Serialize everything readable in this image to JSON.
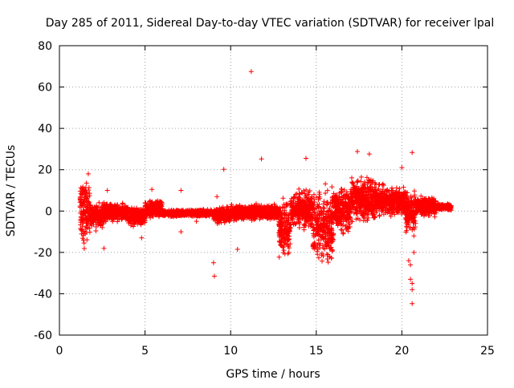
{
  "chart_data": {
    "type": "scatter",
    "title": "Day 285 of 2011, Sidereal Day-to-day VTEC variation (SDTVAR) for receiver lpal",
    "xlabel": "GPS time / hours",
    "ylabel": "SDTVAR / TECUs",
    "xlim": [
      0,
      25
    ],
    "ylim": [
      -60,
      80
    ],
    "xticks": [
      0,
      5,
      10,
      15,
      20,
      25
    ],
    "yticks": [
      -60,
      -40,
      -20,
      0,
      20,
      40,
      60,
      80
    ],
    "grid": true,
    "marker": "+",
    "series": [
      {
        "name": "SDTVAR",
        "color": "#ff0000",
        "bands": [
          {
            "x0": 1.2,
            "x1": 1.8,
            "lo": -20,
            "hi": 21
          },
          {
            "x0": 1.8,
            "x1": 2.6,
            "lo": -10,
            "hi": 6
          },
          {
            "x0": 2.6,
            "x1": 4.0,
            "lo": -6,
            "hi": 5
          },
          {
            "x0": 4.0,
            "x1": 5.0,
            "lo": -8,
            "hi": 3
          },
          {
            "x0": 5.0,
            "x1": 6.0,
            "lo": -4,
            "hi": 6
          },
          {
            "x0": 6.0,
            "x1": 9.0,
            "lo": -3,
            "hi": 1
          },
          {
            "x0": 9.0,
            "x1": 10.0,
            "lo": -7,
            "hi": 3
          },
          {
            "x0": 10.0,
            "x1": 12.8,
            "lo": -5,
            "hi": 4
          },
          {
            "x0": 12.8,
            "x1": 13.5,
            "lo": -26,
            "hi": 8
          },
          {
            "x0": 13.5,
            "x1": 14.8,
            "lo": -10,
            "hi": 12
          },
          {
            "x0": 14.8,
            "x1": 16.0,
            "lo": -30,
            "hi": 15
          },
          {
            "x0": 16.0,
            "x1": 17.0,
            "lo": -14,
            "hi": 16
          },
          {
            "x0": 17.0,
            "x1": 18.5,
            "lo": -8,
            "hi": 19
          },
          {
            "x0": 18.5,
            "x1": 20.2,
            "lo": -4,
            "hi": 14
          },
          {
            "x0": 20.2,
            "x1": 20.8,
            "lo": -12,
            "hi": 12
          },
          {
            "x0": 20.8,
            "x1": 22.0,
            "lo": -3,
            "hi": 8
          },
          {
            "x0": 22.0,
            "x1": 22.9,
            "lo": 0,
            "hi": 4
          }
        ],
        "points": [
          [
            11.2,
            67.5
          ],
          [
            14.4,
            25.5
          ],
          [
            11.8,
            25.2
          ],
          [
            9.6,
            20.2
          ],
          [
            17.4,
            28.8
          ],
          [
            18.1,
            27.6
          ],
          [
            20.6,
            28.3
          ],
          [
            20.0,
            21.0
          ],
          [
            9.0,
            -25.0
          ],
          [
            9.05,
            -31.5
          ],
          [
            10.4,
            -18.5
          ],
          [
            2.6,
            -18.0
          ],
          [
            4.8,
            -13.0
          ],
          [
            7.1,
            -10.0
          ],
          [
            7.1,
            10.0
          ],
          [
            5.4,
            10.5
          ],
          [
            2.8,
            10.0
          ],
          [
            8.0,
            -5.0
          ],
          [
            9.2,
            7.0
          ],
          [
            20.3,
            -8.0
          ],
          [
            20.4,
            -24.0
          ],
          [
            20.5,
            -26.0
          ],
          [
            20.5,
            -33.0
          ],
          [
            20.6,
            -35.0
          ],
          [
            20.6,
            -38.0
          ],
          [
            20.6,
            -44.8
          ],
          [
            20.7,
            -20.0
          ],
          [
            20.7,
            -12.0
          ],
          [
            20.8,
            -6.0
          ]
        ]
      }
    ]
  }
}
